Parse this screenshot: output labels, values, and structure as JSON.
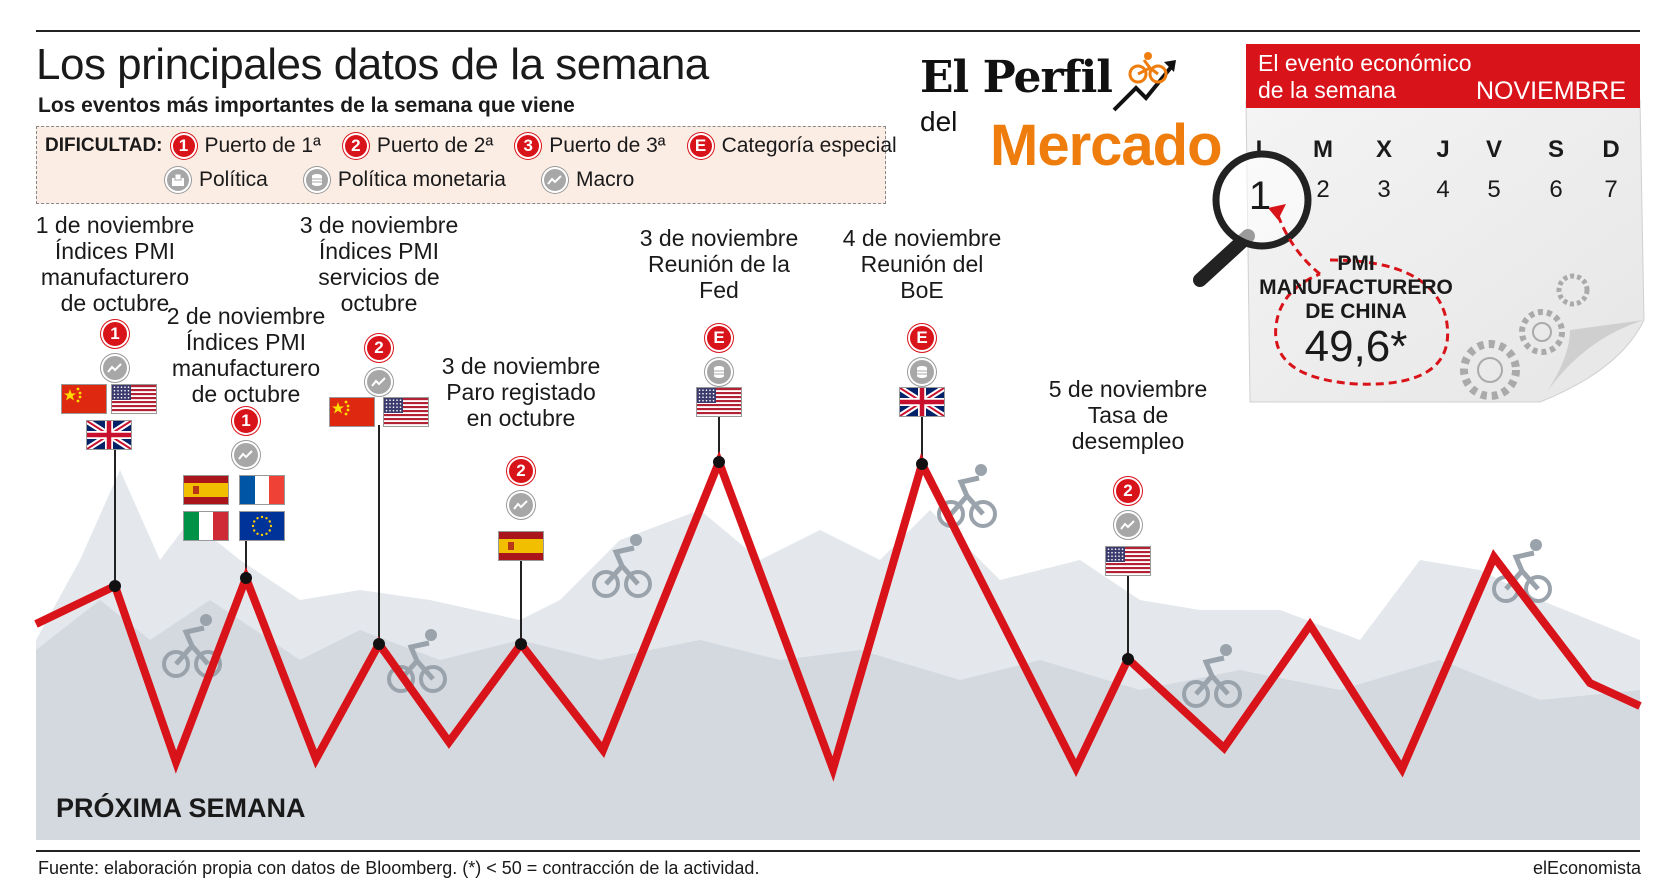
{
  "title": "Los principales datos de la semana",
  "subtitle": "Los eventos más importantes de la semana que viene",
  "legend": {
    "label": "DIFICULTAD:",
    "items": [
      {
        "badge": "1",
        "text": "Puerto de 1ª"
      },
      {
        "badge": "2",
        "text": "Puerto de 2ª"
      },
      {
        "badge": "3",
        "text": "Puerto de 3ª"
      },
      {
        "badge": "E",
        "text": "Categoría especial"
      }
    ],
    "types": [
      {
        "icon": "ballot-box-icon",
        "text": "Política"
      },
      {
        "icon": "coin-stack-icon",
        "text": "Política monetaria"
      },
      {
        "icon": "line-chart-icon",
        "text": "Macro"
      }
    ]
  },
  "logo": {
    "line1": "El Perfil",
    "line2": "del",
    "line3": "Mercado"
  },
  "calendar": {
    "header_line1": "El evento económico",
    "header_line2": "de la semana",
    "month": "NOVIEMBRE",
    "day_names": [
      "L",
      "M",
      "X",
      "J",
      "V",
      "S",
      "D"
    ],
    "days": [
      "1",
      "2",
      "3",
      "4",
      "5",
      "6",
      "7"
    ],
    "highlight_day": "1",
    "event_line1": "PMI",
    "event_line2": "MANUFACTURERO",
    "event_line3": "DE CHINA",
    "event_value": "49,6*"
  },
  "events": [
    {
      "lines": [
        "1 de noviembre",
        "Índices PMI",
        "manufacturero",
        "de octubre"
      ],
      "badge": "1",
      "type": "macro",
      "flags": [
        "cn",
        "us",
        "gb"
      ]
    },
    {
      "lines": [
        "2 de noviembre",
        "Índices PMI",
        "manufacturero",
        "de octubre"
      ],
      "badge": "1",
      "type": "macro",
      "flags": [
        "es",
        "fr",
        "it",
        "eu"
      ]
    },
    {
      "lines": [
        "3 de noviembre",
        "Índices PMI",
        "servicios de",
        "octubre"
      ],
      "badge": "2",
      "type": "macro",
      "flags": [
        "cn",
        "us"
      ]
    },
    {
      "lines": [
        "3 de noviembre",
        "Paro registado",
        "en octubre"
      ],
      "badge": "2",
      "type": "macro",
      "flags": [
        "es"
      ]
    },
    {
      "lines": [
        "3 de noviembre",
        "Reunión de la",
        "Fed"
      ],
      "badge": "E",
      "type": "monetaria",
      "flags": [
        "us"
      ]
    },
    {
      "lines": [
        "4 de noviembre",
        "Reunión del",
        "BoE"
      ],
      "badge": "E",
      "type": "monetaria",
      "flags": [
        "gb"
      ]
    },
    {
      "lines": [
        "5 de noviembre",
        "Tasa de",
        "desempleo"
      ],
      "badge": "2",
      "type": "macro",
      "flags": [
        "us"
      ]
    }
  ],
  "footer": {
    "section": "PRÓXIMA SEMANA",
    "source": "Fuente: elaboración propia con datos de Bloomberg. (*) < 50 = contracción de la actividad.",
    "brand": "elEconomista"
  },
  "colors": {
    "accent": "#d9131a",
    "orange": "#ef7d0e",
    "mountain": "#dfe3e8",
    "legend_bg": "#fbece4"
  }
}
